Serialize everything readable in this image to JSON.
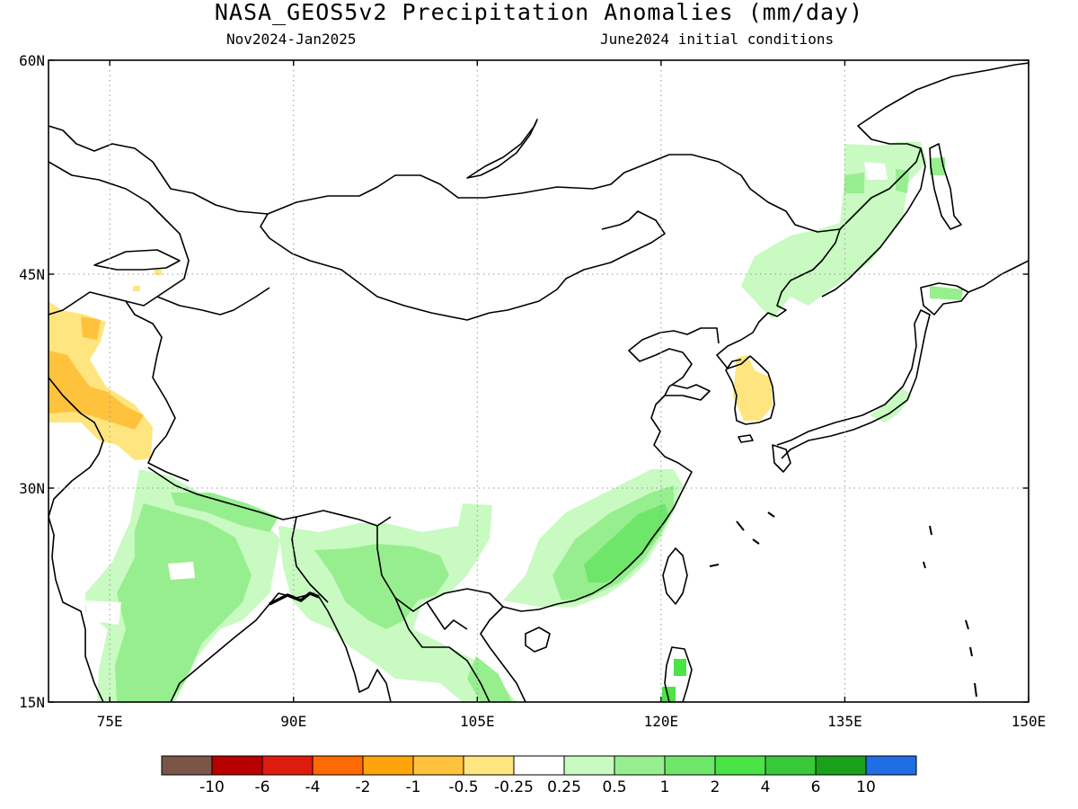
{
  "title": "NASA_GEOS5v2 Precipitation Anomalies (mm/day)",
  "subtitle_left": "Nov2024-Jan2025",
  "subtitle_right": "June2024 initial conditions",
  "chart_data": {
    "type": "heatmap",
    "title": "NASA_GEOS5v2 Precipitation Anomalies (mm/day)",
    "lon_range": [
      70,
      150
    ],
    "lat_range": [
      15,
      60
    ],
    "lat_ticks": [
      "15N",
      "30N",
      "45N",
      "60N"
    ],
    "lon_ticks": [
      "75E",
      "90E",
      "105E",
      "120E",
      "135E",
      "150E"
    ],
    "grid": true,
    "colorbar": {
      "levels": [
        "-10",
        "-6",
        "-4",
        "-2",
        "-1",
        "-0.5",
        "-0.25",
        "0.25",
        "0.5",
        "1",
        "2",
        "4",
        "6",
        "10"
      ],
      "colors": [
        "#7a5548",
        "#b80000",
        "#de1c0e",
        "#ff6a00",
        "#ffa30a",
        "#ffc23c",
        "#ffe57f",
        "#ffffff",
        "#c8fac2",
        "#97ee8f",
        "#6ee66a",
        "#4be346",
        "#3ac83b",
        "#1aa11b",
        "#1f6ee6"
      ]
    },
    "anomaly_regions": [
      {
        "name": "west-asia-dry",
        "category": "-1"
      },
      {
        "name": "west-asia-dry-light",
        "category": "-0.5"
      },
      {
        "name": "korea-dry",
        "category": "-0.25"
      },
      {
        "name": "india-wet",
        "category": "0.5"
      },
      {
        "name": "india-wet-core",
        "category": "1"
      },
      {
        "name": "indochina-wet",
        "category": "0.5"
      },
      {
        "name": "indochina-wet-core",
        "category": "1"
      },
      {
        "name": "southeast-china-wet",
        "category": "0.5"
      },
      {
        "name": "southeast-china-wet-core",
        "category": "1"
      },
      {
        "name": "southeast-china-wet-peak",
        "category": "2"
      },
      {
        "name": "manchuria-wet",
        "category": "0.5"
      },
      {
        "name": "manchuria-wet-core",
        "category": "1"
      },
      {
        "name": "taiwan-wet",
        "category": "2"
      },
      {
        "name": "japan-wet",
        "category": "0.5"
      }
    ]
  }
}
